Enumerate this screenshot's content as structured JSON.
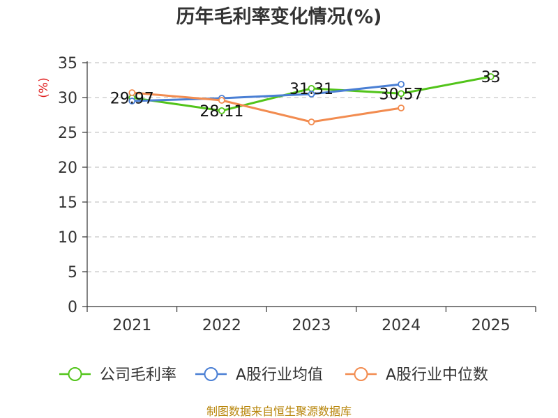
{
  "title": "历年毛利率变化情况(%)",
  "source": "制图数据来自恒生聚源数据库",
  "chart_data": {
    "type": "line",
    "title": "历年毛利率变化情况(%)",
    "xlabel": "",
    "ylabel": "(%)",
    "ylim": [
      0,
      35
    ],
    "yticks": [
      0,
      5,
      10,
      15,
      20,
      25,
      30,
      35
    ],
    "grid": true,
    "legend_position": "bottom",
    "categories": [
      "2021",
      "2022",
      "2023",
      "2024",
      "2025"
    ],
    "series": [
      {
        "name": "公司毛利率",
        "color": "#52c41a",
        "values": [
          29.97,
          28.11,
          31.31,
          30.57,
          33
        ],
        "labels": [
          "29.97",
          "28.11",
          "31.31",
          "30.57",
          "33"
        ]
      },
      {
        "name": "A股行业均值",
        "color": "#4a7fd4",
        "values": [
          29.5,
          29.9,
          30.5,
          31.9,
          null
        ]
      },
      {
        "name": "A股行业中位数",
        "color": "#f28c50",
        "values": [
          30.7,
          29.6,
          26.5,
          28.5,
          null
        ]
      }
    ]
  }
}
